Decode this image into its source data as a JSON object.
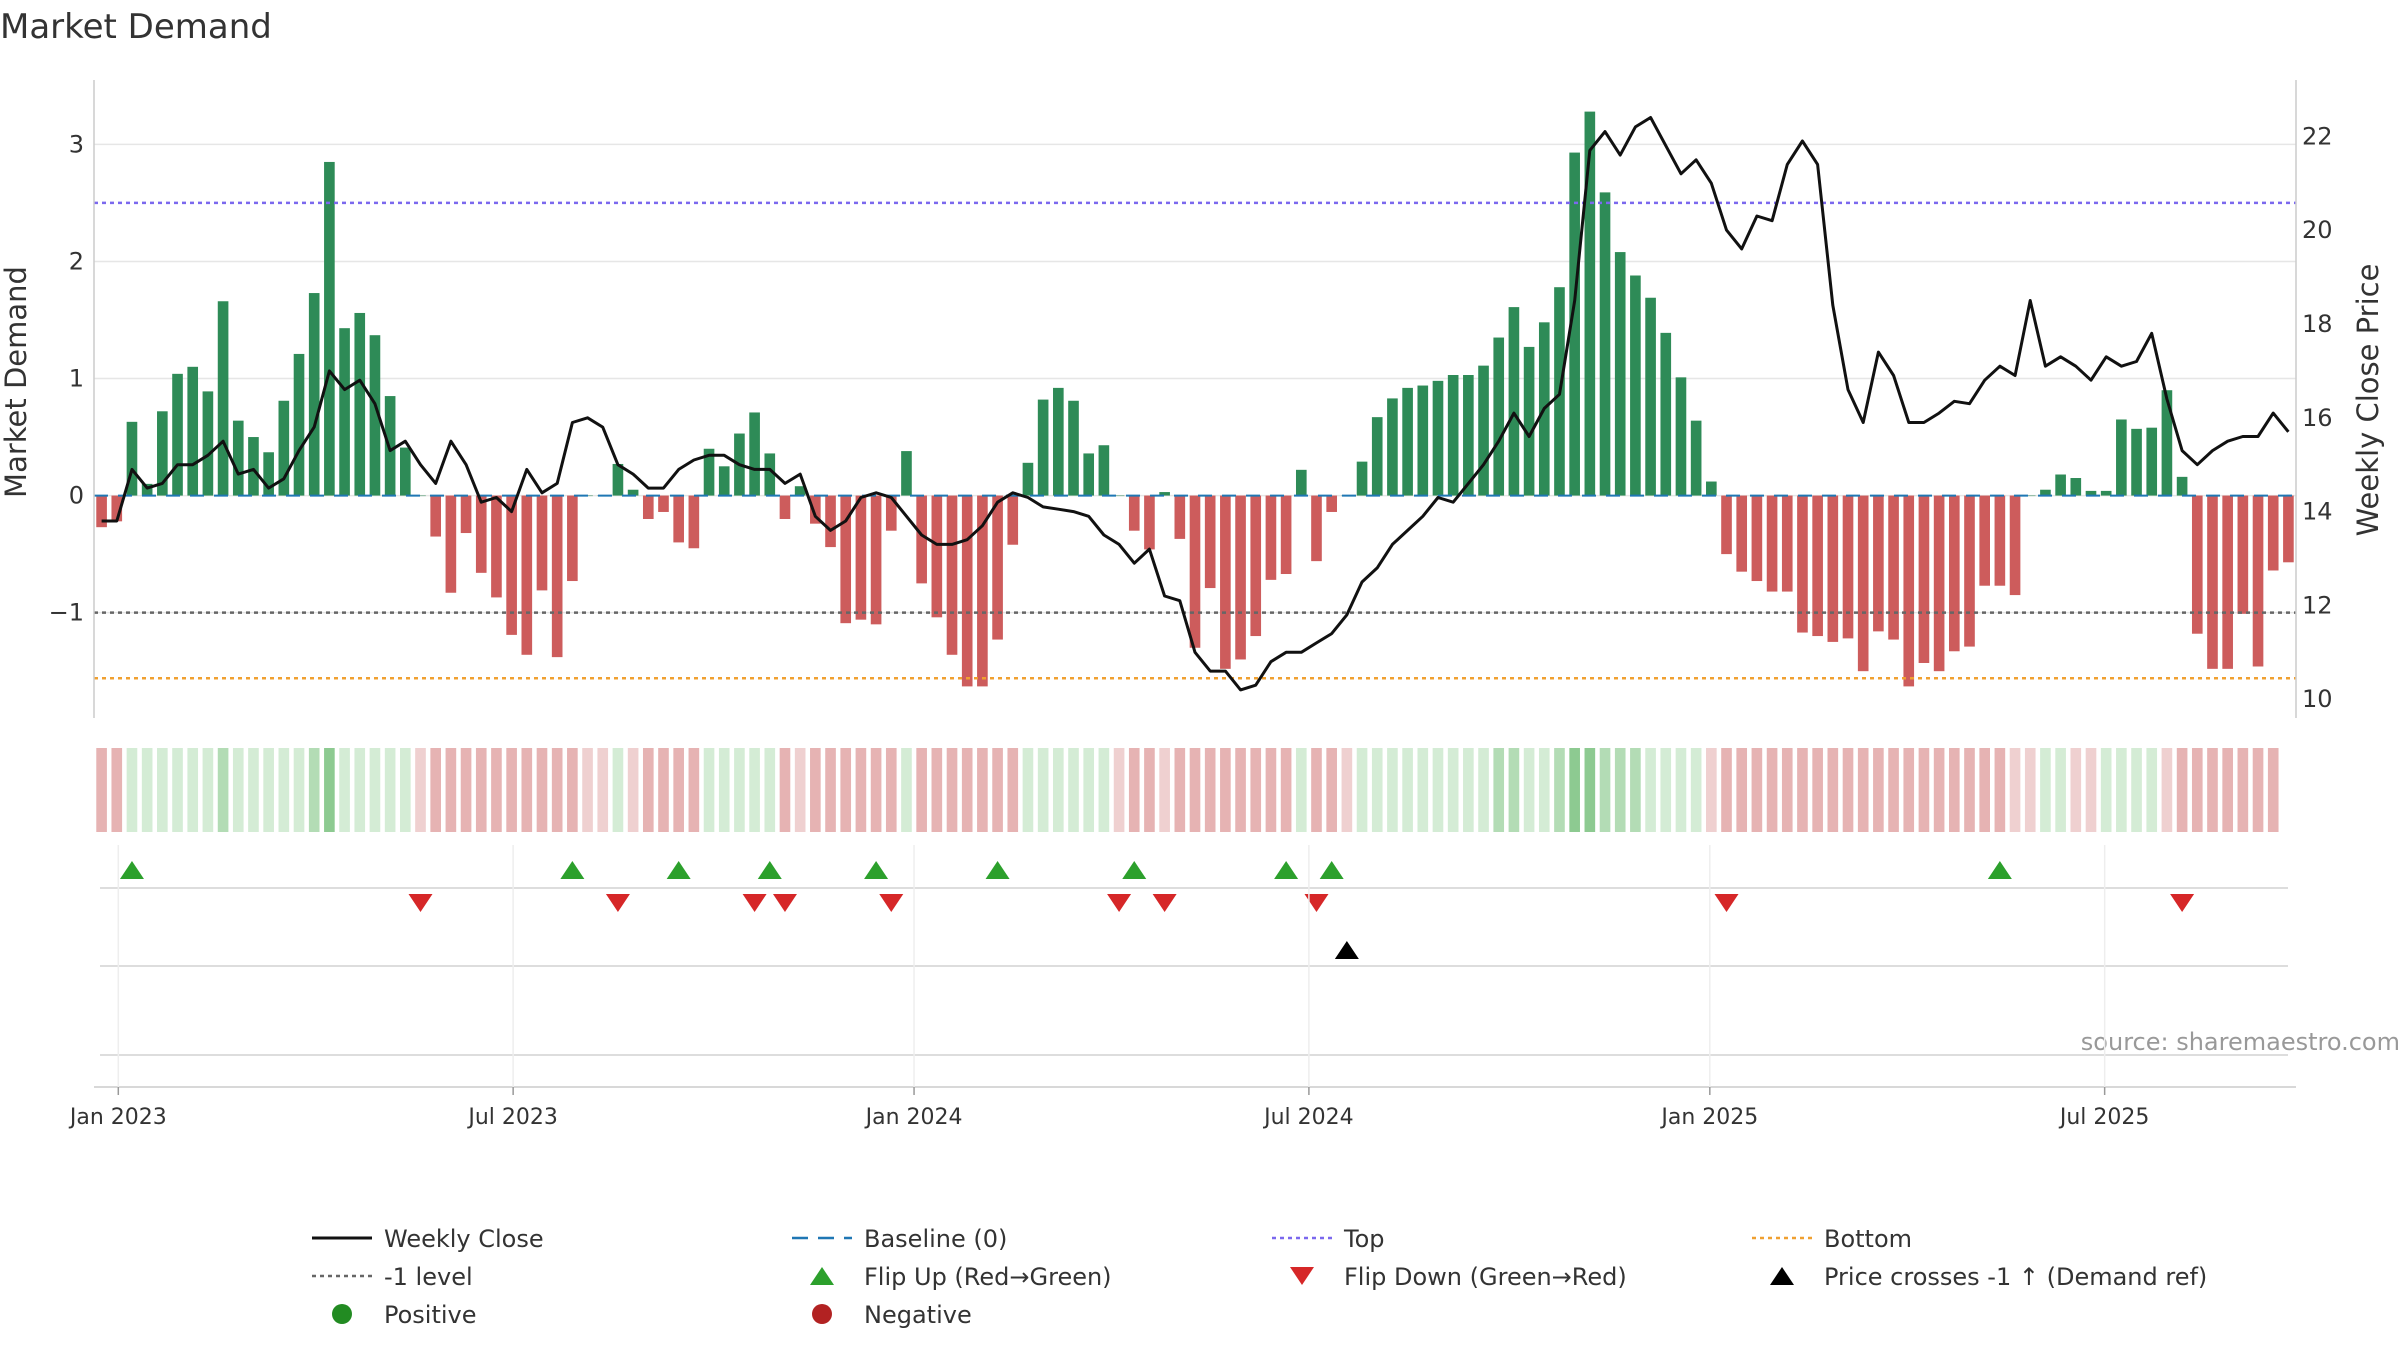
{
  "chart_data": {
    "type": "bar",
    "title": "Market Demand",
    "ylabel_left": "Market Demand",
    "ylabel_right": "Weekly Close Price",
    "ylim_left": [
      -1.9,
      3.55
    ],
    "ylim_right": [
      9.6,
      23.2
    ],
    "y_ticks_left": [
      -1,
      0,
      1,
      2,
      3
    ],
    "y_tick_labels_left": [
      "−1",
      "0",
      "1",
      "2",
      "3"
    ],
    "y_ticks_right": [
      10,
      12,
      14,
      16,
      18,
      20,
      22
    ],
    "y_tick_labels_right": [
      "10",
      "12",
      "14",
      "16",
      "18",
      "20",
      "22"
    ],
    "x_tick_labels": [
      "Jan 2023",
      "Jul 2023",
      "Jan 2024",
      "Jul 2024",
      "Jan 2025",
      "Jul 2025"
    ],
    "x_tick_index": [
      1.6,
      27.6,
      54,
      80,
      106.4,
      132.4
    ],
    "reference_lines": {
      "top": 2.5,
      "minus_one": -1,
      "bottom": -1.56,
      "baseline": 0
    },
    "demand": [
      -0.27,
      -0.22,
      0.63,
      0.1,
      0.72,
      1.04,
      1.1,
      0.89,
      1.66,
      0.64,
      0.5,
      0.37,
      0.81,
      1.21,
      1.73,
      2.85,
      1.43,
      1.56,
      1.37,
      0.85,
      0.41,
      0,
      -0.35,
      -0.83,
      -0.32,
      -0.66,
      -0.87,
      -1.19,
      -1.36,
      -0.81,
      -1.38,
      -0.73,
      0,
      0,
      0.27,
      0.05,
      -0.2,
      -0.14,
      -0.4,
      -0.45,
      0.4,
      0.25,
      0.53,
      0.71,
      0.36,
      -0.2,
      0.08,
      -0.24,
      -0.44,
      -1.09,
      -1.06,
      -1.1,
      -0.3,
      0.38,
      -0.75,
      -1.04,
      -1.36,
      -1.63,
      -1.63,
      -1.23,
      -0.42,
      0.28,
      0.82,
      0.92,
      0.81,
      0.36,
      0.43,
      0,
      -0.3,
      -0.46,
      0.03,
      -0.37,
      -1.3,
      -0.79,
      -1.48,
      -1.4,
      -1.2,
      -0.72,
      -0.67,
      0.22,
      -0.56,
      -0.14,
      0,
      0.29,
      0.67,
      0.83,
      0.92,
      0.94,
      0.98,
      1.03,
      1.03,
      1.11,
      1.35,
      1.61,
      1.27,
      1.48,
      1.78,
      2.93,
      3.28,
      2.59,
      2.08,
      1.88,
      1.69,
      1.39,
      1.01,
      0.64,
      0.12,
      -0.5,
      -0.65,
      -0.73,
      -0.82,
      -0.82,
      -1.17,
      -1.2,
      -1.25,
      -1.22,
      -1.5,
      -1.16,
      -1.23,
      -1.63,
      -1.43,
      -1.5,
      -1.33,
      -1.29,
      -0.77,
      -0.77,
      -0.85,
      0,
      0.05,
      0.18,
      0.15,
      0.04,
      0.04,
      0.65,
      0.57,
      0.58,
      0.9,
      0.16,
      -1.18,
      -1.48,
      -1.48,
      -1.01,
      -1.46,
      -0.64,
      -0.57
    ],
    "weekly_close": [
      13.8,
      13.8,
      14.9,
      14.5,
      14.6,
      15,
      15,
      15.2,
      15.5,
      14.8,
      14.9,
      14.5,
      14.7,
      15.3,
      15.8,
      17,
      16.6,
      16.8,
      16.3,
      15.3,
      15.5,
      15,
      14.6,
      15.5,
      15,
      14.2,
      14.3,
      14,
      14.9,
      14.4,
      14.6,
      15.9,
      16,
      15.8,
      15,
      14.8,
      14.5,
      14.5,
      14.9,
      15.1,
      15.2,
      15.2,
      15,
      14.9,
      14.9,
      14.6,
      14.8,
      13.9,
      13.6,
      13.8,
      14.3,
      14.4,
      14.3,
      13.9,
      13.5,
      13.3,
      13.3,
      13.4,
      13.7,
      14.2,
      14.4,
      14.3,
      14.1,
      14.05,
      14,
      13.9,
      13.5,
      13.3,
      12.9,
      13.2,
      12.2,
      12.1,
      11,
      10.6,
      10.6,
      10.2,
      10.3,
      10.8,
      11,
      11,
      11.2,
      11.4,
      11.8,
      12.5,
      12.8,
      13.3,
      13.6,
      13.9,
      14.3,
      14.2,
      14.6,
      15,
      15.5,
      16.1,
      15.6,
      16.2,
      16.5,
      18.5,
      21.7,
      22.1,
      21.6,
      22.2,
      22.4,
      21.8,
      21.2,
      21.5,
      21,
      20,
      19.6,
      20.3,
      20.2,
      21.4,
      21.9,
      21.4,
      18.4,
      16.6,
      15.9,
      17.4,
      16.9,
      15.9,
      15.9,
      16.1,
      16.35,
      16.3,
      16.8,
      17.1,
      16.9,
      18.5,
      17.1,
      17.3,
      17.1,
      16.8,
      17.3,
      17.1,
      17.2,
      17.8,
      16.4,
      15.3,
      15,
      15.3,
      15.5,
      15.6,
      15.6,
      16.1,
      15.7
    ],
    "strip_levels": [
      -1,
      -1,
      1,
      1,
      1,
      1,
      1,
      1,
      2,
      1,
      1,
      1,
      1,
      1,
      2,
      3,
      1,
      1,
      1,
      1,
      1,
      0,
      -1,
      -1,
      -1,
      -1,
      -1,
      -1,
      -1,
      -1,
      -1,
      -1,
      0,
      0,
      1,
      0,
      -1,
      -1,
      -1,
      -1,
      1,
      1,
      1,
      1,
      1,
      -1,
      0,
      -1,
      -1,
      -1,
      -1,
      -1,
      -1,
      1,
      -1,
      -1,
      -1,
      -1,
      -1,
      -1,
      -1,
      1,
      1,
      1,
      1,
      1,
      1,
      0,
      -1,
      -1,
      0,
      -1,
      -1,
      -1,
      -1,
      -1,
      -1,
      -1,
      -1,
      1,
      -1,
      -1,
      0,
      1,
      1,
      1,
      1,
      1,
      1,
      1,
      1,
      1,
      2,
      2,
      1,
      1,
      2,
      3,
      3,
      2,
      2,
      2,
      1,
      1,
      1,
      1,
      0,
      -1,
      -1,
      -1,
      -1,
      -1,
      -1,
      -1,
      -1,
      -1,
      -1,
      -1,
      -1,
      -1,
      -1,
      -1,
      -1,
      -1,
      -1,
      -1,
      0,
      0,
      1,
      1,
      0,
      0,
      1,
      1,
      1,
      1,
      0,
      -1,
      -1,
      -1,
      -1,
      -1,
      -1,
      -1
    ],
    "flip_up_index": [
      2,
      31,
      38,
      44,
      51,
      59,
      68,
      78,
      81,
      125
    ],
    "flip_down_index": [
      21,
      34,
      43,
      45,
      52,
      67,
      70,
      80,
      107,
      137
    ],
    "price_cross_index": [
      82
    ],
    "source": "source: sharemaestro.com",
    "legend": [
      {
        "label": "Weekly Close",
        "kind": "line"
      },
      {
        "label": "Baseline (0)",
        "kind": "dash"
      },
      {
        "label": "Top",
        "kind": "dotted-blue"
      },
      {
        "label": "Bottom",
        "kind": "dotted-orange"
      },
      {
        "label": "-1 level",
        "kind": "dotted-gray"
      },
      {
        "label": "Flip Up (Red→Green)",
        "kind": "tri-up-green"
      },
      {
        "label": "Flip Down (Green→Red)",
        "kind": "tri-down-red"
      },
      {
        "label": "Price crosses -1 ↑ (Demand ref)",
        "kind": "tri-up-black"
      },
      {
        "label": "Positive",
        "kind": "dot-green"
      },
      {
        "label": "Negative",
        "kind": "dot-red"
      }
    ],
    "colors": {
      "positive": "#2e8b57",
      "negative": "#cd5c5c",
      "price": "#111111",
      "top": "#7b68ee",
      "bottom": "#f0a030",
      "minus_one": "#666666",
      "baseline": "#1f77b4",
      "flip_up": "#2ca02c",
      "flip_down": "#d62728",
      "cross": "#000000",
      "dot_positive": "#228b22",
      "dot_negative": "#b22222",
      "grid": "#e6e6e6",
      "strip_pos": [
        "#d4ecd5",
        "#b3dcb5",
        "#8dca91",
        "#4aa84f"
      ],
      "strip_neg": "#e6b3b3",
      "strip_neg_light": "#efd0d0"
    }
  }
}
